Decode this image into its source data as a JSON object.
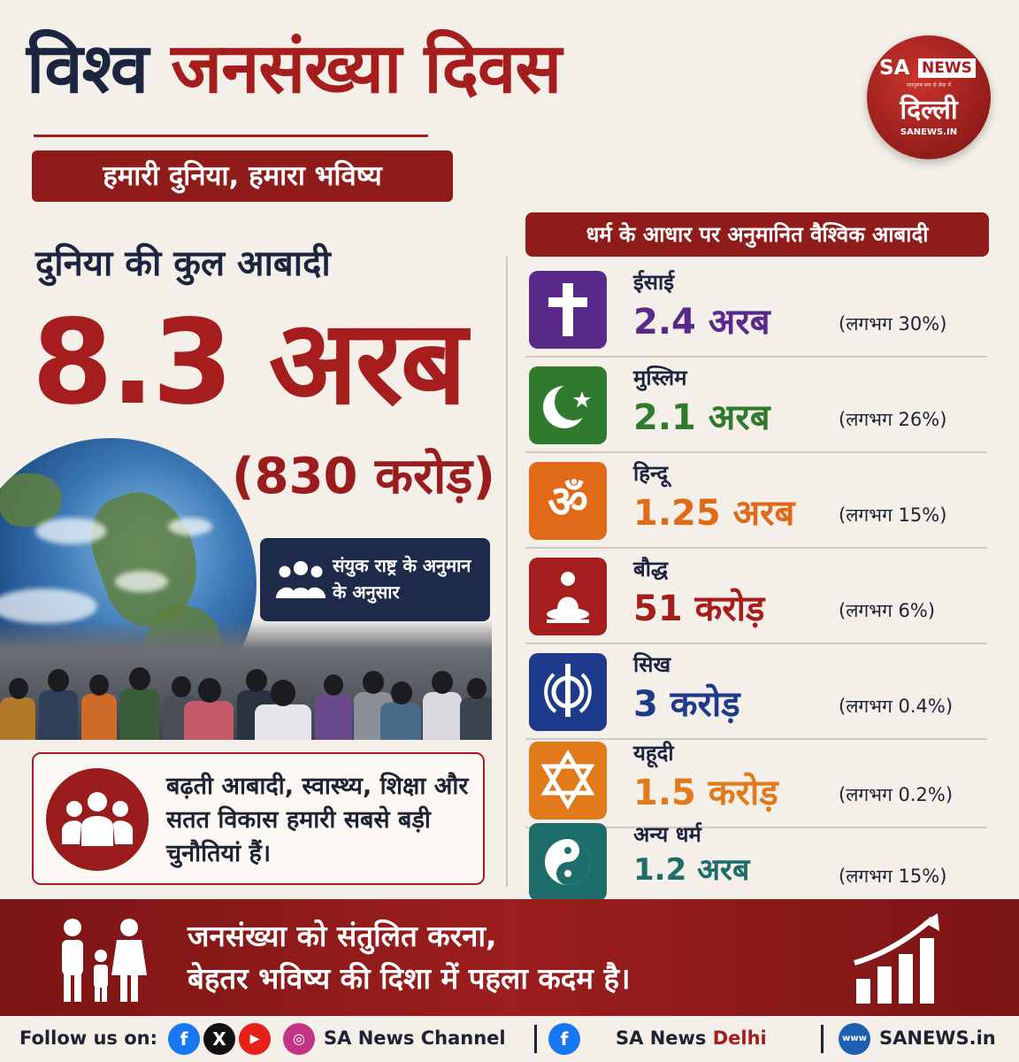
{
  "title": {
    "word1": "विश्व",
    "word2": "जनसंख्या दिवस"
  },
  "subtitle": "हमारी दुनिया, हमारा भविष्य",
  "logo": {
    "sa": "SA",
    "news": "NEWS",
    "tagline": "सतपुरुष सच से सेवा में",
    "city": "दिल्ली",
    "url": "SANEWS.IN"
  },
  "population": {
    "label": "दुनिया की कुल आबादी",
    "value": "8.3 अरब",
    "sub": "(830 करोड़)",
    "source": "संयुक राष्ट्र के अनुमान के अनुसार"
  },
  "challenge": "बढ़ती आबादी, स्वास्थ्य, शिक्षा और सतत विकास हमारी सबसे बड़ी चुनौतियां हैं।",
  "religions": {
    "header": "धर्म के आधार पर  अनुमानित वैश्विक आबादी",
    "items": [
      {
        "name": "ईसाई",
        "value": "2.4 अरब",
        "pct": "(लगभग 30%)",
        "color": "#5a2a8a",
        "icon": "cross-icon"
      },
      {
        "name": "मुस्लिम",
        "value": "2.1 अरब",
        "pct": "(लगभग 26%)",
        "color": "#2f7a2c",
        "icon": "crescent-star-icon"
      },
      {
        "name": "हिन्दू",
        "value": "1.25 अरब",
        "pct": "(लगभग 15%)",
        "color": "#e06a17",
        "icon": "om-icon"
      },
      {
        "name": "बौद्ध",
        "value": "51 करोड़",
        "pct": "(लगभग 6%)",
        "color": "#a51d1d",
        "icon": "buddha-icon"
      },
      {
        "name": "सिख",
        "value": "3 करोड़",
        "pct": "(लगभग 0.4%)",
        "color": "#1e3a8a",
        "icon": "khanda-icon"
      },
      {
        "name": "यहूदी",
        "value": "1.5 करोड़",
        "pct": "(लगभग 0.2%)",
        "color": "#e07a1a",
        "icon": "star-of-david-icon"
      },
      {
        "name": "अन्य धर्म",
        "value": "1.2 अरब",
        "pct": "(लगभग 15%)",
        "color": "#1f6d6b",
        "icon": "yin-yang-icon"
      }
    ]
  },
  "footer": {
    "line1": "जनसंख्या को संतुलित करना,",
    "line2": "बेहतर भविष्य की दिशा में पहला कदम है।"
  },
  "social": {
    "follow": "Follow us on:",
    "channel": "SA News Channel",
    "delhi_prefix": "SA News",
    "delhi_suffix": "Delhi",
    "www": "www",
    "site": "SANEWS.in"
  }
}
